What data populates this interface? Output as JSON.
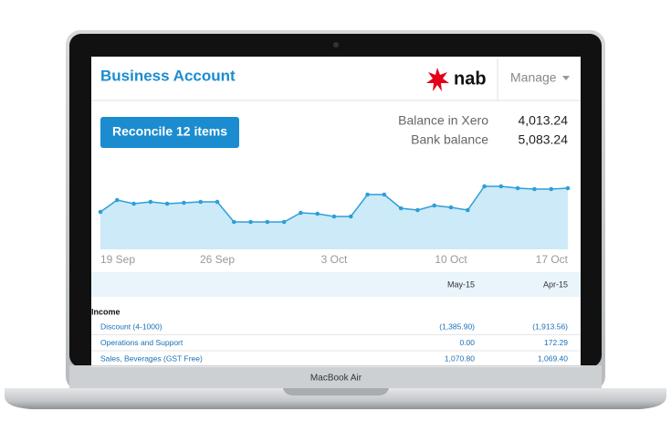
{
  "header": {
    "title": "Business Account",
    "bank": "nab",
    "menu": "Manage"
  },
  "reconcile_button": "Reconcile 12 items",
  "balances": [
    {
      "label": "Balance in Xero",
      "value": "4,013.24"
    },
    {
      "label": "Bank balance",
      "value": "5,083.24"
    }
  ],
  "chart_data": {
    "type": "area",
    "color": "#2e9fd8",
    "fill": "#cdeaf8",
    "categories": [
      "19 Sep",
      null,
      null,
      null,
      null,
      null,
      null,
      "26 Sep",
      null,
      null,
      null,
      null,
      null,
      null,
      "3 Oct",
      null,
      null,
      null,
      null,
      null,
      null,
      "10 Oct",
      null,
      null,
      null,
      null,
      null,
      null,
      "17 Oct"
    ],
    "values": [
      41,
      54,
      50,
      52,
      50,
      51,
      52,
      52,
      30,
      30,
      30,
      30,
      40,
      39,
      36,
      36,
      60,
      60,
      45,
      43,
      48,
      46,
      43,
      69,
      69,
      67,
      66,
      66,
      67
    ],
    "ylim": [
      0,
      80
    ]
  },
  "table": {
    "columns": [
      "May-15",
      "Apr-15"
    ],
    "section": "Income",
    "rows": [
      [
        "Discount (4-1000)",
        "(1,385.90)",
        "(1,913.56)"
      ],
      [
        "Operations and Support",
        "0.00",
        "172.29"
      ],
      [
        "Sales, Beverages (GST Free)",
        "1,070.80",
        "1,069.40"
      ]
    ]
  },
  "device_label": "MacBook Air"
}
